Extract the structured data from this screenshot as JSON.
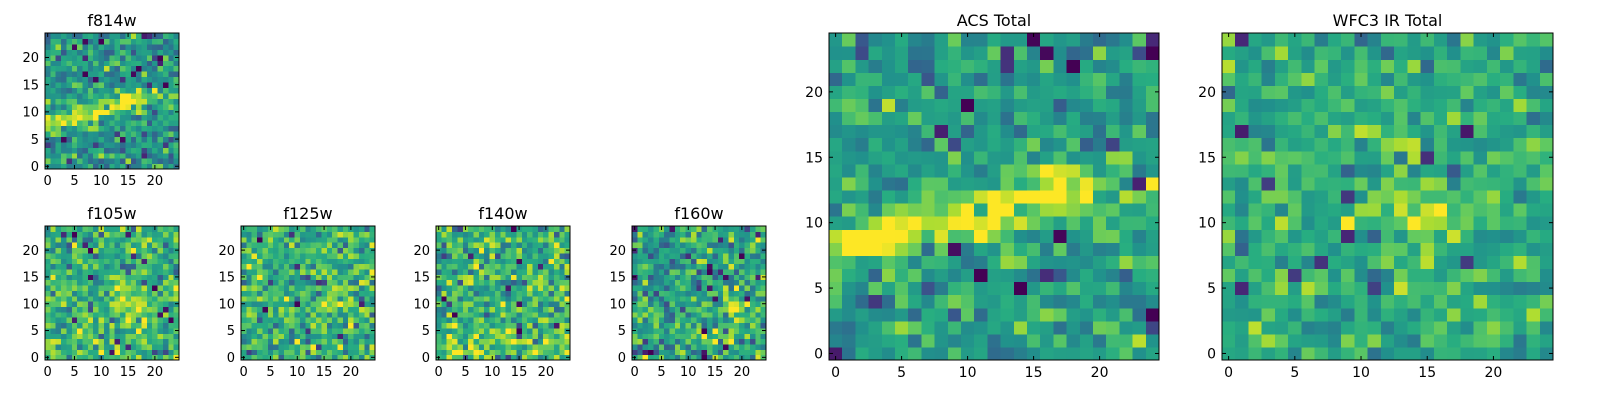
{
  "chart_data": [
    {
      "type": "heatmap",
      "title": "f814w",
      "grid_size": 25,
      "xticks": [
        0,
        5,
        10,
        15,
        20
      ],
      "yticks": [
        0,
        5,
        10,
        15,
        20
      ],
      "xlim": [
        -0.5,
        24.5
      ],
      "ylim": [
        -0.5,
        24.5
      ],
      "colormap": "viridis",
      "feature": "bright diagonal band from (0,8) rising to (15,12)"
    },
    {
      "type": "heatmap",
      "title": "f105w",
      "grid_size": 25,
      "xticks": [
        0,
        5,
        10,
        15,
        20
      ],
      "yticks": [
        0,
        5,
        10,
        15,
        20
      ],
      "xlim": [
        -0.5,
        24.5
      ],
      "ylim": [
        -0.5,
        24.5
      ],
      "colormap": "viridis",
      "feature": "diffuse bright blob near (15,10)"
    },
    {
      "type": "heatmap",
      "title": "f125w",
      "grid_size": 25,
      "xticks": [
        0,
        5,
        10,
        15,
        20
      ],
      "yticks": [
        0,
        5,
        10,
        15,
        20
      ],
      "xlim": [
        -0.5,
        24.5
      ],
      "ylim": [
        -0.5,
        24.5
      ],
      "colormap": "viridis",
      "feature": "noise with bright region near (17,10)"
    },
    {
      "type": "heatmap",
      "title": "f140w",
      "grid_size": 25,
      "xticks": [
        0,
        5,
        10,
        15,
        20
      ],
      "yticks": [
        0,
        5,
        10,
        15,
        20
      ],
      "xlim": [
        -0.5,
        24.5
      ],
      "ylim": [
        -0.5,
        24.5
      ],
      "colormap": "viridis",
      "feature": "mostly noise, brighter lower rows"
    },
    {
      "type": "heatmap",
      "title": "f160w",
      "grid_size": 25,
      "xticks": [
        0,
        5,
        10,
        15,
        20
      ],
      "yticks": [
        0,
        5,
        10,
        15,
        20
      ],
      "xlim": [
        -0.5,
        24.5
      ],
      "ylim": [
        -0.5,
        24.5
      ],
      "colormap": "viridis",
      "feature": "noise with bright blob near (19,9)"
    },
    {
      "type": "heatmap",
      "title": "ACS Total",
      "grid_size": 25,
      "xticks": [
        0,
        5,
        10,
        15,
        20
      ],
      "yticks": [
        0,
        5,
        10,
        15,
        20
      ],
      "xlim": [
        -0.5,
        24.5
      ],
      "ylim": [
        -0.5,
        24.5
      ],
      "colormap": "viridis",
      "feature": "bright band from (0,8) rising to (16,12)"
    },
    {
      "type": "heatmap",
      "title": "WFC3 IR Total",
      "grid_size": 25,
      "xticks": [
        0,
        5,
        10,
        15,
        20
      ],
      "yticks": [
        0,
        5,
        10,
        15,
        20
      ],
      "xlim": [
        -0.5,
        24.5
      ],
      "ylim": [
        -0.5,
        24.5
      ],
      "colormap": "viridis",
      "feature": "bright region near (12-18, 9-12) over noise"
    }
  ]
}
